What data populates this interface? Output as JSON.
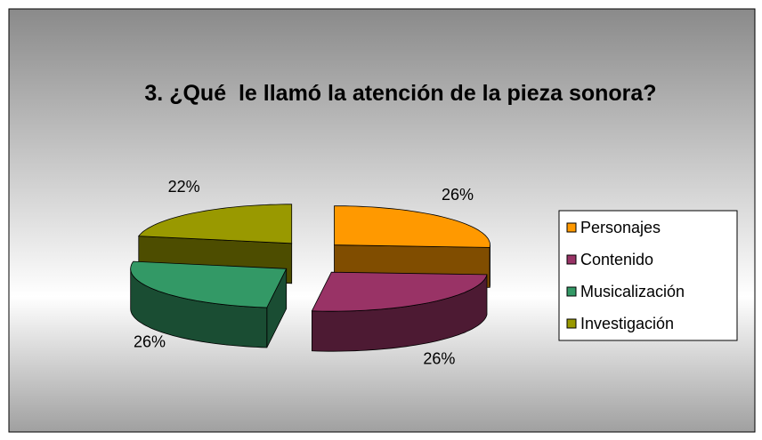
{
  "chart_data": {
    "type": "pie3d",
    "title": "3. ¿Qué  le llamó la atención de la pieza sonora?",
    "categories": [
      "Personajes",
      "Contenido",
      "Musicalización",
      "Investigación"
    ],
    "values": [
      26,
      26,
      26,
      22
    ],
    "value_labels": [
      "26%",
      "26%",
      "26%",
      "22%"
    ],
    "colors": [
      "#FF9900",
      "#993366",
      "#339966",
      "#999900"
    ],
    "legend": "right"
  }
}
